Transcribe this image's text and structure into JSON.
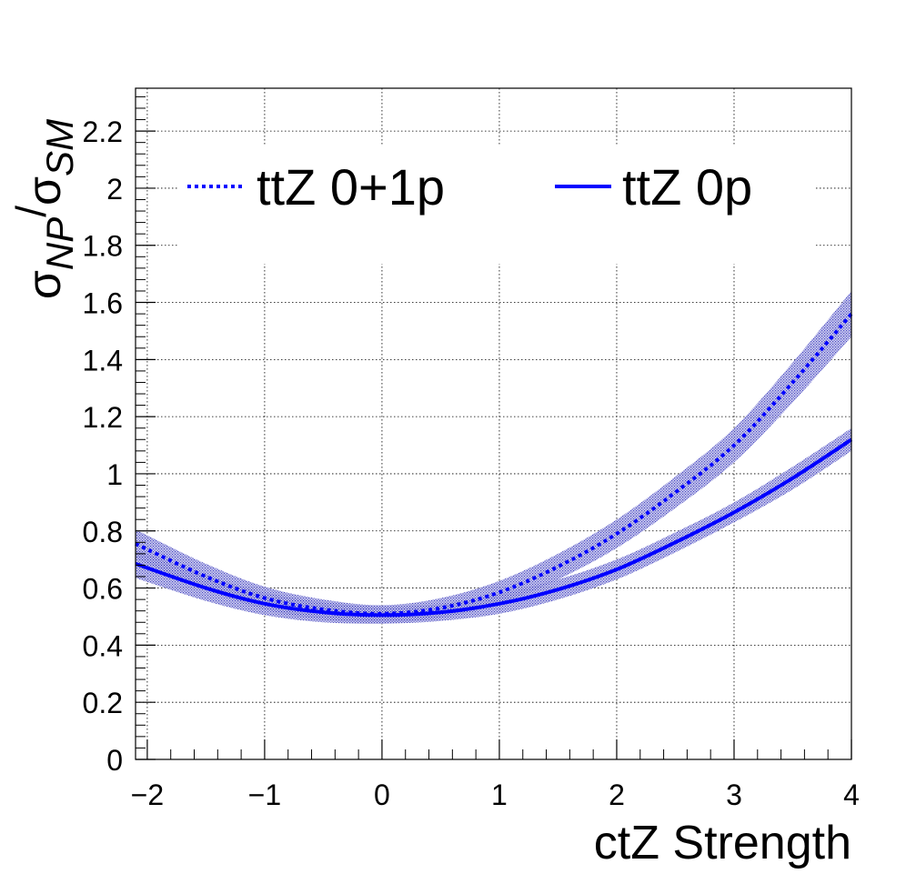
{
  "chart_data": {
    "type": "line",
    "title": "",
    "xlabel": "ctZ Strength",
    "ylabel_parts": [
      "σ",
      "NP",
      "/",
      "σ",
      "SM"
    ],
    "xlim": [
      -2.1,
      4
    ],
    "ylim": [
      0,
      2.35
    ],
    "xticks": [
      -2,
      -1,
      0,
      1,
      2,
      3,
      4
    ],
    "xtick_labels": [
      "−2",
      "−1",
      "0",
      "1",
      "2",
      "3",
      "4"
    ],
    "yticks": [
      0,
      0.2,
      0.4,
      0.6,
      0.8,
      1,
      1.2,
      1.4,
      1.6,
      1.8,
      2,
      2.2
    ],
    "ytick_labels": [
      "0",
      "0.2",
      "0.4",
      "0.6",
      "0.8",
      "1",
      "1.2",
      "1.4",
      "1.6",
      "1.8",
      "2",
      "2.2"
    ],
    "grid": true,
    "legend_position": "top",
    "series": [
      {
        "name": "ttZ 0+1p",
        "style": "dotted",
        "color": "#0000ff",
        "band_color": "#2a2ab8",
        "x": [
          -2.1,
          -1.5,
          -1.0,
          -0.5,
          0.0,
          0.5,
          1.0,
          1.5,
          2.0,
          2.5,
          3.0,
          3.5,
          4.0
        ],
        "y": [
          0.755,
          0.64,
          0.565,
          0.525,
          0.51,
          0.53,
          0.585,
          0.675,
          0.79,
          0.935,
          1.1,
          1.32,
          1.56
        ],
        "band": [
          0.05,
          0.045,
          0.04,
          0.035,
          0.03,
          0.035,
          0.04,
          0.045,
          0.05,
          0.055,
          0.06,
          0.07,
          0.08
        ]
      },
      {
        "name": "ttZ 0p",
        "style": "solid",
        "color": "#0000ff",
        "band_color": "#2a2ab8",
        "x": [
          -2.1,
          -1.5,
          -1.0,
          -0.5,
          0.0,
          0.5,
          1.0,
          1.5,
          2.0,
          2.5,
          3.0,
          3.5,
          4.0
        ],
        "y": [
          0.685,
          0.6,
          0.545,
          0.515,
          0.505,
          0.515,
          0.545,
          0.595,
          0.665,
          0.76,
          0.865,
          0.985,
          1.12
        ],
        "band": [
          0.05,
          0.045,
          0.04,
          0.035,
          0.03,
          0.03,
          0.035,
          0.035,
          0.035,
          0.035,
          0.035,
          0.04,
          0.04
        ]
      }
    ]
  }
}
